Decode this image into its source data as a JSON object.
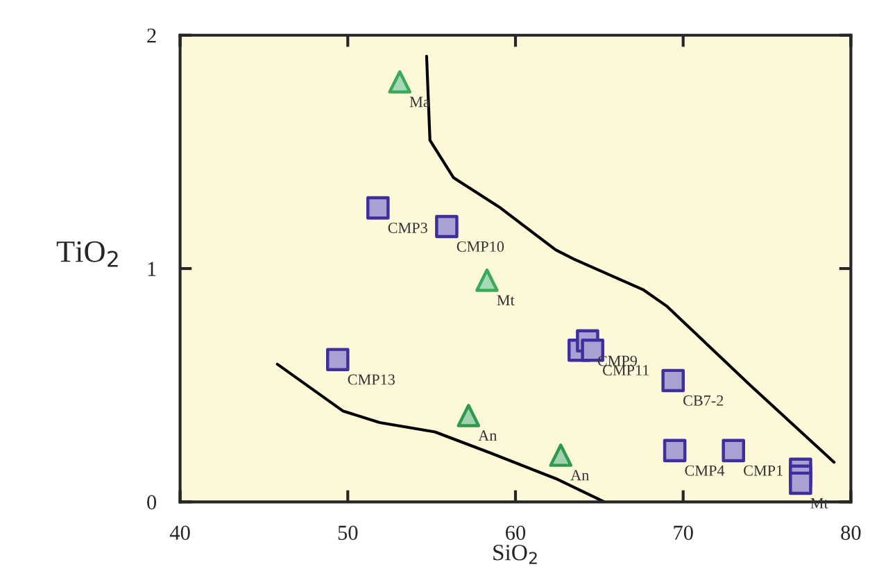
{
  "chart_data": {
    "type": "scatter",
    "xlabel": "SiO$_{2}$",
    "ylabel": "TiO$_{2}$",
    "xlim": [
      40,
      80
    ],
    "ylim": [
      0,
      2
    ],
    "xticks": [
      40,
      50,
      60,
      70,
      80
    ],
    "yticks": [
      0,
      1,
      2
    ],
    "grid": false,
    "legend": false,
    "series": [
      {
        "marker": "square",
        "color": "#3d2f9c",
        "x": [
          51.8,
          55.9,
          49.4,
          63.8,
          64.3,
          64.6,
          69.4,
          69.5,
          73.0,
          77.0,
          77.0,
          77.0
        ],
        "values": [
          1.26,
          1.18,
          0.61,
          0.65,
          0.69,
          0.65,
          0.52,
          0.22,
          0.22,
          0.14,
          0.11,
          0.08
        ]
      },
      {
        "marker": "triangle",
        "color": "#3aaa5a",
        "x": [
          53.1,
          58.3
        ],
        "values": [
          1.8,
          0.95
        ]
      },
      {
        "marker": "triangle",
        "color": "#2e9a4e",
        "x": [
          57.2,
          62.7
        ],
        "values": [
          0.37,
          0.2
        ]
      },
      {
        "type": "line",
        "color": "#000000",
        "x": [
          54.7,
          54.9,
          56.3,
          59.1,
          62.4,
          63.5,
          67.6,
          69.0,
          74.0,
          79.0
        ],
        "values": [
          1.91,
          1.55,
          1.39,
          1.26,
          1.08,
          1.04,
          0.91,
          0.84,
          0.5,
          0.17
        ]
      },
      {
        "type": "line",
        "color": "#000000",
        "x": [
          45.8,
          49.7,
          51.9,
          55.2,
          58.5,
          62.4,
          65.3
        ],
        "values": [
          0.59,
          0.39,
          0.34,
          0.3,
          0.21,
          0.1,
          0.0
        ]
      }
    ],
    "annotations": [
      {
        "text": "CMP3",
        "x": 51.8,
        "y": 1.26
      },
      {
        "text": "CMP10",
        "x": 55.9,
        "y": 1.18
      },
      {
        "text": "CMP13",
        "x": 49.4,
        "y": 0.61
      },
      {
        "text": "CMP9",
        "x": 64.3,
        "y": 0.69
      },
      {
        "text": "CMP11",
        "x": 64.6,
        "y": 0.65
      },
      {
        "text": "CB7-2",
        "x": 69.4,
        "y": 0.52
      },
      {
        "text": "CMP4",
        "x": 69.5,
        "y": 0.22
      },
      {
        "text": "CMP1",
        "x": 73.0,
        "y": 0.22
      },
      {
        "text": "Mt",
        "x": 77.0,
        "y": 0.08
      },
      {
        "text": "Ma",
        "x": 53.1,
        "y": 1.8
      },
      {
        "text": "Mt",
        "x": 58.3,
        "y": 0.95
      },
      {
        "text": "An",
        "x": 57.2,
        "y": 0.37
      },
      {
        "text": "An",
        "x": 62.7,
        "y": 0.2
      }
    ]
  }
}
